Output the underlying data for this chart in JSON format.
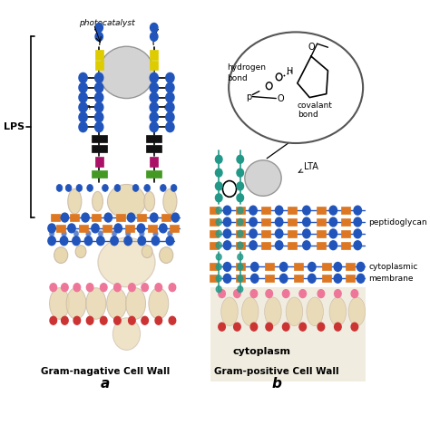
{
  "title_a": "Gram-nagative Cell Wall",
  "title_b": "Gram-positive Cell Wall",
  "label_a": "a",
  "label_b": "b",
  "label_lps": "LPS",
  "label_photocatalyst": "photocatalyst",
  "label_hydrogen": "hydrogen   H",
  "label_bond1": "bond",
  "label_covalant": "covalant",
  "label_covalant2": "bond",
  "label_P": "p",
  "label_O1": "O",
  "label_LTA": "LTA",
  "label_peptidoglycan": "peptidoglycan",
  "label_cytoplasmic": "cytoplasmic",
  "label_membrane": "membrane",
  "label_cytoplasm": "cytoplasm",
  "bg_color": "#ffffff",
  "colors": {
    "blue": "#2255bb",
    "orange": "#dd7722",
    "yellow": "#ddcc00",
    "black": "#111111",
    "magenta": "#aa1166",
    "green": "#449922",
    "gray": "#aaaaaa",
    "lgray": "#cccccc",
    "pink": "#ee7799",
    "beige": "#e8d8b0",
    "teal": "#229988",
    "red": "#cc3333",
    "darkblue": "#003388"
  }
}
